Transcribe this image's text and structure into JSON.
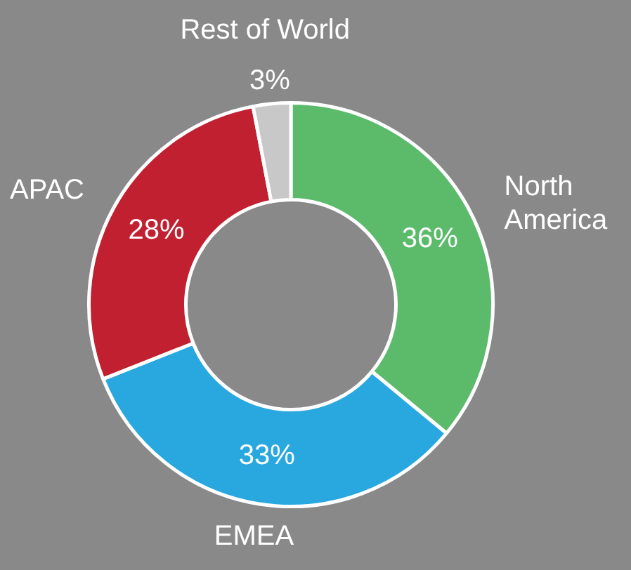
{
  "chart_data": {
    "type": "donut",
    "categories": [
      "North America",
      "EMEA",
      "APAC",
      "Rest of World"
    ],
    "values": [
      36,
      33,
      28,
      3
    ],
    "colors": [
      "#5bbb6b",
      "#29a8e0",
      "#c0202f",
      "#c8c8c8"
    ],
    "value_labels": [
      "36%",
      "33%",
      "28%",
      "3%"
    ],
    "legend": false
  }
}
